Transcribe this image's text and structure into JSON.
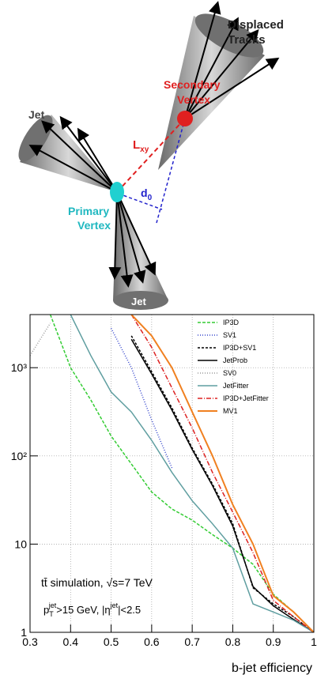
{
  "diagram": {
    "displaced_tracks": [
      "Displaced",
      "Tracks"
    ],
    "secondary_vertex": [
      "Secondary",
      "Vertex"
    ],
    "primary_vertex": [
      "Primary",
      "Vertex"
    ],
    "jet_left": "Jet",
    "jet_bottom": "Jet",
    "lxy": [
      "L",
      "xy"
    ],
    "d0": [
      "d",
      "0"
    ]
  },
  "chart_data": {
    "type": "line",
    "x": [
      0.3,
      0.35,
      0.4,
      0.45,
      0.5,
      0.55,
      0.6,
      0.65,
      0.7,
      0.75,
      0.8,
      0.85,
      0.9,
      0.95,
      1.0
    ],
    "series": [
      {
        "name": "IP3D",
        "color": "#33cc33",
        "dash": "4 2",
        "values": [
          null,
          4000,
          1000,
          430,
          168,
          81,
          39,
          25,
          18.7,
          12.8,
          9,
          5.9,
          2.7,
          1.7,
          1
        ]
      },
      {
        "name": "SV1",
        "color": "#3344cc",
        "dash": "1 2",
        "values": [
          null,
          null,
          null,
          null,
          2800,
          1000,
          255,
          73,
          null,
          null,
          null,
          null,
          null,
          null,
          null
        ]
      },
      {
        "name": "IP3D+SV1",
        "color": "#000000",
        "dash": "3 2",
        "values": [
          null,
          null,
          null,
          null,
          null,
          2300,
          900,
          350,
          123,
          48,
          17,
          3.2,
          2.1,
          1.5,
          1
        ]
      },
      {
        "name": "JetProb",
        "color": "#000000",
        "dash": "none",
        "values": [
          null,
          null,
          null,
          null,
          null,
          2100,
          850,
          330,
          118,
          46,
          16,
          3.3,
          2.0,
          1.4,
          1
        ]
      },
      {
        "name": "SV0",
        "color": "#999999",
        "dash": "1 2",
        "values": [
          1370,
          3200,
          null,
          null,
          null,
          null,
          null,
          null,
          null,
          null,
          null,
          null,
          null,
          null,
          null
        ]
      },
      {
        "name": "JetFitter",
        "color": "#5f9ea0",
        "dash": "none",
        "values": [
          null,
          null,
          4000,
          1370,
          530,
          315,
          150,
          65,
          31,
          17,
          9,
          2.1,
          1.7,
          1.37,
          1
        ]
      },
      {
        "name": "IP3D+JetFitter",
        "color": "#dd2222",
        "dash": "6 2 1 2",
        "values": [
          null,
          null,
          null,
          null,
          null,
          4000,
          1700,
          590,
          207,
          65,
          23,
          8,
          2.3,
          1.5,
          1
        ]
      },
      {
        "name": "MV1",
        "color": "#f08020",
        "dash": "none",
        "values": [
          null,
          null,
          null,
          null,
          null,
          4000,
          2300,
          1000,
          315,
          100,
          28,
          10,
          2.6,
          1.7,
          1
        ]
      }
    ],
    "xlim": [
      0.3,
      1
    ],
    "xticks": [
      0.3,
      0.4,
      0.5,
      0.6,
      0.7,
      0.8,
      0.9,
      1
    ],
    "ylim": [
      1,
      4000
    ],
    "yticks": [
      1,
      10,
      {
        "value": 100,
        "label": "10²"
      },
      {
        "value": 1000,
        "label": "10³"
      }
    ],
    "log_y": true,
    "grid": true,
    "legend": "upper right",
    "xlabel": "b-jet efficiency",
    "annotation_1": "tt̄ simulation, √s=7 TeV",
    "annotation_2": [
      "p",
      "T",
      "jet",
      ">15 GeV, |η",
      "jet",
      "|<2.5"
    ]
  }
}
